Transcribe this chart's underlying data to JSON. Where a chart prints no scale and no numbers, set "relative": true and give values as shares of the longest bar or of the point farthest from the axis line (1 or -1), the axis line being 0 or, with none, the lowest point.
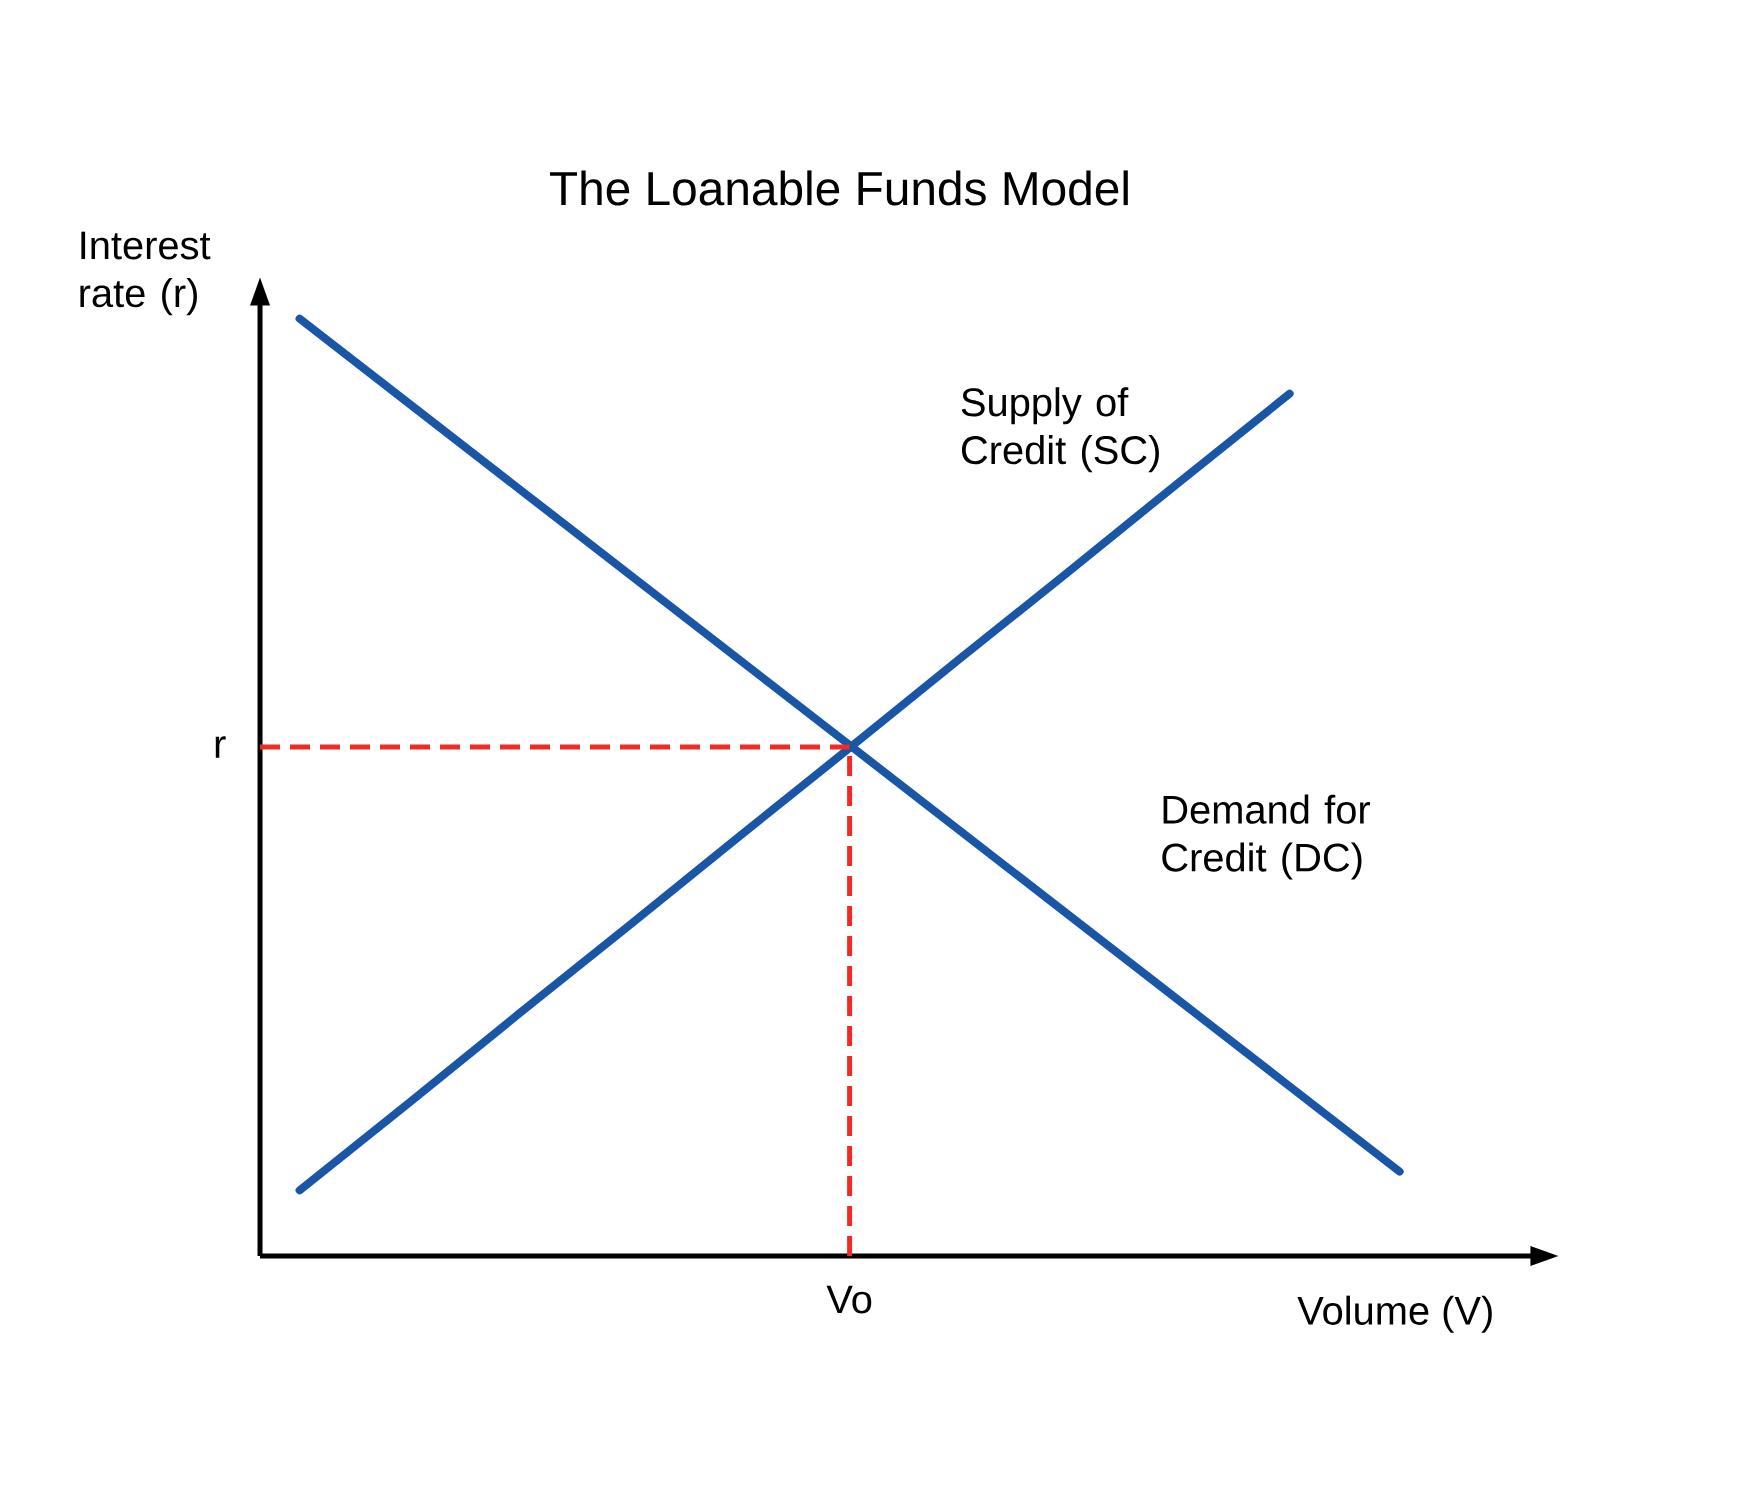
{
  "chart_data": {
    "type": "line",
    "title": "The Loanable Funds Model",
    "annotations": [
      "Vo"
    ],
    "xlabel": "Volume (V)",
    "ylabel": "Interest rate (r)",
    "relative": true,
    "categories": [
      null,
      null,
      null,
      null,
      null,
      null,
      null,
      null,
      null,
      null,
      null
    ],
    "series": [
      {
        "name": "Supply of Credit (SC)",
        "color": "#1a56a6",
        "values": [
          0.07,
          0.164,
          0.259,
          0.353,
          0.448,
          0.542,
          0.637,
          0.731,
          0.826,
          0.92,
          null
        ]
      },
      {
        "name": "Demand for Credit (DC)",
        "color": "#1a56a6",
        "values": [
          1.0,
          0.909,
          0.818,
          0.727,
          0.636,
          0.545,
          0.454,
          0.363,
          0.272,
          0.181,
          0.09
        ]
      }
    ],
    "ref_lines": [
      {
        "axis": "y",
        "value": 0.543,
        "label": "r",
        "color": "#ee2b24",
        "line_style": "dashed"
      }
    ]
  }
}
